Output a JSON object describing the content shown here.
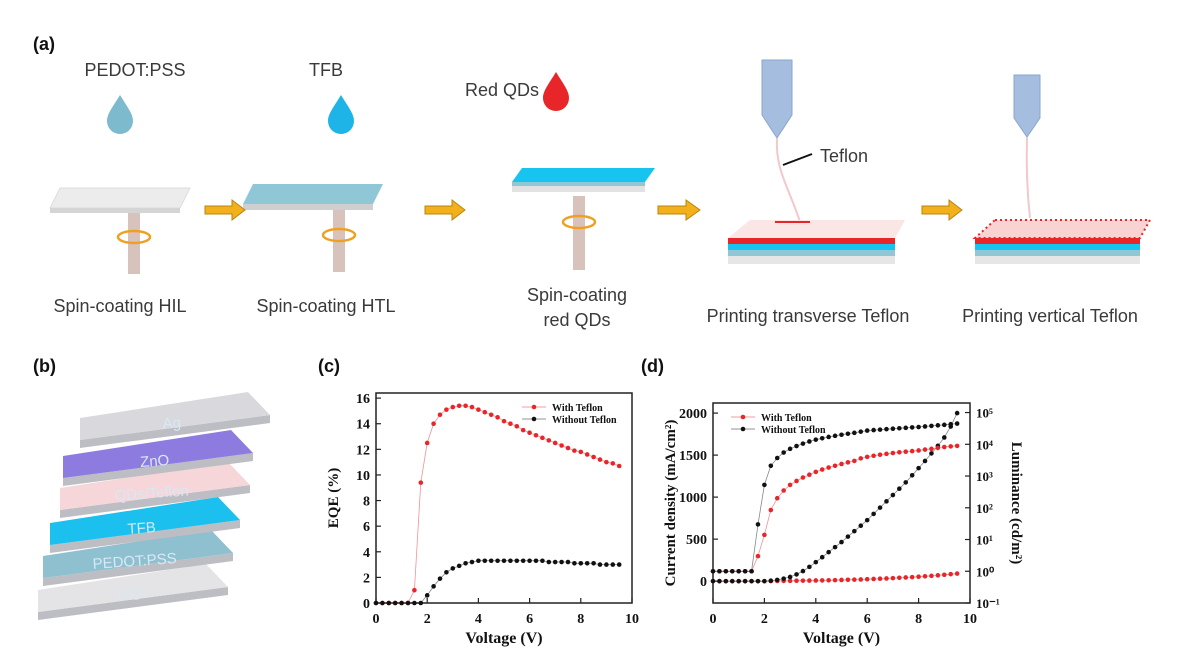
{
  "figure": {
    "a": {
      "panel": "(a)",
      "drops": [
        "PEDOT:PSS",
        "TFB",
        "Red QDs"
      ],
      "teflon": "Teflon",
      "steps": [
        [
          "Spin-coating HIL"
        ],
        [
          "Spin-coating HTL"
        ],
        [
          "Spin-coating",
          "red QDs"
        ],
        [
          "Printing transverse Teflon"
        ],
        [
          "Printing vertical Teflon"
        ]
      ]
    },
    "b": {
      "panel": "(b)",
      "layers": [
        "Ag",
        "ZnO",
        "QDs/Teflon",
        "TFB",
        "PEDOT:PSS",
        "ITO"
      ]
    }
  },
  "chart_data": [
    {
      "type": "line",
      "panel": "(c)",
      "x_label": "Voltage (V)",
      "y_label": "EQE (%)",
      "x": [
        0,
        0.25,
        0.5,
        0.75,
        1,
        1.25,
        1.5,
        1.75,
        2,
        2.25,
        2.5,
        2.75,
        3,
        3.25,
        3.5,
        3.75,
        4,
        4.25,
        4.5,
        4.75,
        5,
        5.25,
        5.5,
        5.75,
        6,
        6.25,
        6.5,
        6.75,
        7,
        7.25,
        7.5,
        7.75,
        8,
        8.25,
        8.5,
        8.75,
        9,
        9.25,
        9.5
      ],
      "xlim": [
        0,
        10
      ],
      "xticks": [
        0,
        2,
        4,
        6,
        8,
        10
      ],
      "ylim": [
        0,
        16.4
      ],
      "yticks": [
        0,
        2,
        4,
        6,
        8,
        10,
        12,
        14,
        16
      ],
      "legend": "upper right",
      "series": [
        {
          "name": "With Teflon",
          "color": "#e8262a",
          "values": [
            0,
            0,
            0,
            0,
            0,
            0,
            1.0,
            9.4,
            12.5,
            14.0,
            14.7,
            15.1,
            15.3,
            15.4,
            15.4,
            15.3,
            15.1,
            14.9,
            14.7,
            14.5,
            14.2,
            14.0,
            13.8,
            13.5,
            13.3,
            13.1,
            12.9,
            12.7,
            12.5,
            12.3,
            12.1,
            11.9,
            11.8,
            11.6,
            11.4,
            11.2,
            11.0,
            10.9,
            10.7
          ]
        },
        {
          "name": "Without Teflon",
          "color": "#111111",
          "values": [
            0,
            0,
            0,
            0,
            0,
            0,
            0,
            0,
            0.6,
            1.3,
            1.9,
            2.4,
            2.7,
            2.9,
            3.1,
            3.2,
            3.3,
            3.3,
            3.3,
            3.3,
            3.3,
            3.3,
            3.3,
            3.3,
            3.3,
            3.3,
            3.3,
            3.2,
            3.2,
            3.2,
            3.2,
            3.1,
            3.1,
            3.1,
            3.1,
            3.0,
            3.0,
            3.0,
            3.0
          ]
        }
      ]
    },
    {
      "type": "line",
      "panel": "(d)",
      "x_label": "Voltage (V)",
      "y_label": "Current density (mA/cm²)",
      "y2_label": "Luminance (cd/m²)",
      "x": [
        0,
        0.25,
        0.5,
        0.75,
        1,
        1.25,
        1.5,
        1.75,
        2,
        2.25,
        2.5,
        2.75,
        3,
        3.25,
        3.5,
        3.75,
        4,
        4.25,
        4.5,
        4.75,
        5,
        5.25,
        5.5,
        5.75,
        6,
        6.25,
        6.5,
        6.75,
        7,
        7.25,
        7.5,
        7.75,
        8,
        8.25,
        8.5,
        8.75,
        9,
        9.25,
        9.5
      ],
      "xlim": [
        0,
        10
      ],
      "xticks": [
        0,
        2,
        4,
        6,
        8,
        10
      ],
      "ylim": [
        -260,
        2120
      ],
      "yticks": [
        0,
        500,
        1000,
        1500,
        2000
      ],
      "y2log": true,
      "y2lim": [
        0.1,
        200000
      ],
      "y2ticks": [
        {
          "value": 0.1,
          "label": "10⁻¹"
        },
        {
          "value": 1,
          "label": "10⁰"
        },
        {
          "value": 10,
          "label": "10¹"
        },
        {
          "value": 100,
          "label": "10²"
        },
        {
          "value": 1000,
          "label": "10³"
        },
        {
          "value": 10000,
          "label": "10⁴"
        },
        {
          "value": 100000,
          "label": "10⁵"
        }
      ],
      "legend": "upper left",
      "series": [
        {
          "name": "With Teflon",
          "color": "#e8262a",
          "values": [
            0,
            0,
            0,
            0,
            0,
            0,
            0,
            0,
            0,
            1,
            2,
            3,
            4,
            5,
            6,
            7,
            8,
            9,
            10,
            12,
            14,
            16,
            18,
            20,
            23,
            26,
            29,
            32,
            36,
            40,
            44,
            48,
            53,
            58,
            63,
            69,
            76,
            83,
            90
          ]
        },
        {
          "name": "Without Teflon",
          "color": "#111111",
          "values": [
            0,
            0,
            0,
            0,
            0,
            0,
            0,
            0,
            0,
            5,
            15,
            30,
            50,
            80,
            120,
            170,
            226,
            285,
            345,
            405,
            465,
            530,
            595,
            660,
            726,
            800,
            875,
            950,
            1025,
            1100,
            1175,
            1260,
            1345,
            1430,
            1520,
            1610,
            1710,
            1840,
            2000
          ]
        },
        {
          "name": "With Teflon",
          "color": "#e8262a",
          "axis": "y2",
          "values": [
            1,
            1,
            1,
            1,
            1,
            1,
            1,
            3,
            14,
            85,
            200,
            350,
            525,
            700,
            900,
            1100,
            1350,
            1600,
            1850,
            2100,
            2400,
            2700,
            3000,
            3600,
            4000,
            4350,
            4700,
            5000,
            5300,
            5600,
            5850,
            6100,
            6400,
            6800,
            7200,
            7700,
            8200,
            8600,
            8900
          ]
        },
        {
          "name": "Without Teflon",
          "color": "#111111",
          "axis": "y2",
          "values": [
            1,
            1,
            1,
            1,
            1,
            1,
            1,
            30,
            525,
            2100,
            3700,
            5500,
            7200,
            8800,
            10500,
            12300,
            14000,
            15500,
            17000,
            18500,
            20000,
            21500,
            23000,
            25000,
            27000,
            28000,
            29000,
            30000,
            31000,
            32000,
            33000,
            34000,
            35000,
            36500,
            38000,
            39500,
            41000,
            43000,
            45000
          ]
        }
      ]
    }
  ]
}
